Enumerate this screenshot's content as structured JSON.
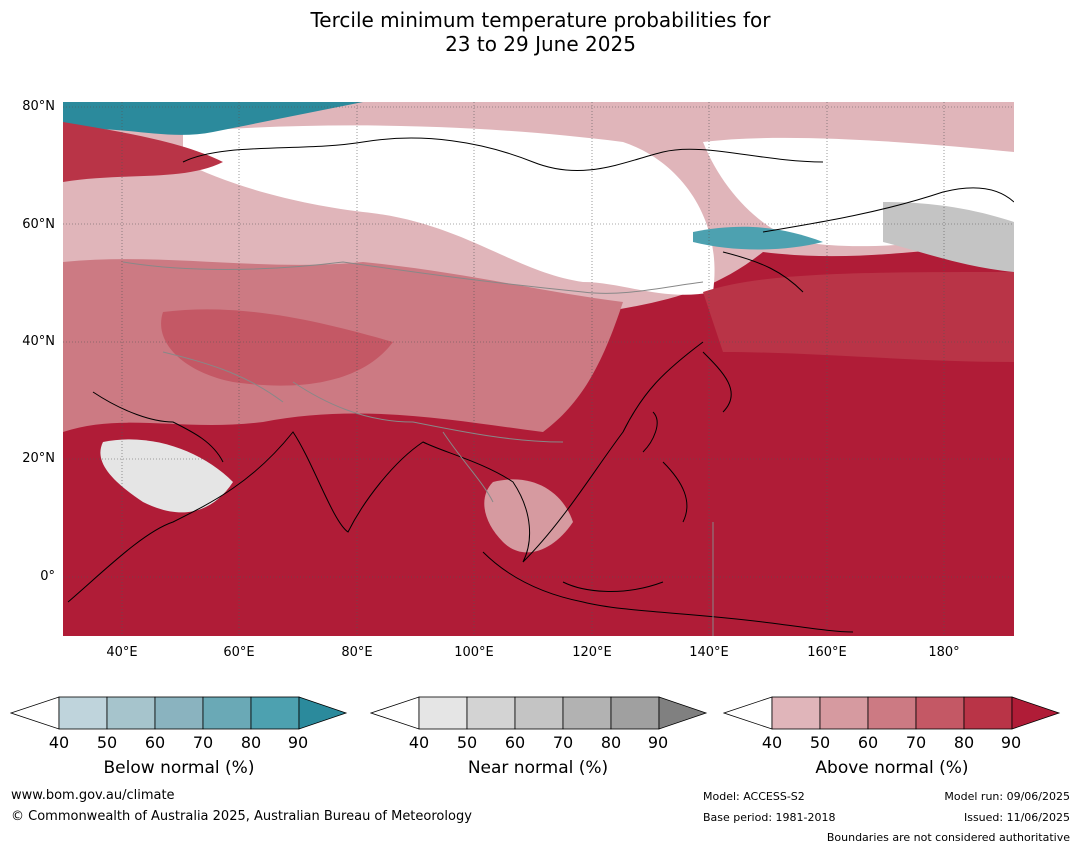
{
  "title_line1": "Tercile minimum temperature probabilities for",
  "title_line2": "23 to 29 June 2025",
  "lat_labels": [
    "80°N",
    "60°N",
    "40°N",
    "20°N",
    "0°"
  ],
  "lon_labels": [
    "40°E",
    "60°E",
    "80°E",
    "100°E",
    "120°E",
    "140°E",
    "160°E",
    "180°"
  ],
  "colorbars": [
    {
      "title": "Below normal (%)",
      "ticks": [
        "40",
        "50",
        "60",
        "70",
        "80",
        "90"
      ],
      "colors": [
        "#ffffff",
        "#bfd4dc",
        "#a6c4cc",
        "#8ab3bf",
        "#6aa9b6",
        "#4da1b0",
        "#2b8a9c"
      ]
    },
    {
      "title": "Near normal (%)",
      "ticks": [
        "40",
        "50",
        "60",
        "70",
        "80",
        "90"
      ],
      "colors": [
        "#ffffff",
        "#e5e5e5",
        "#d3d3d3",
        "#c4c4c4",
        "#b2b2b2",
        "#a0a0a0",
        "#808080"
      ]
    },
    {
      "title": "Above normal (%)",
      "ticks": [
        "40",
        "50",
        "60",
        "70",
        "80",
        "90"
      ],
      "colors": [
        "#ffffff",
        "#e0b5ba",
        "#d69aa0",
        "#cc7a83",
        "#c45865",
        "#b93447",
        "#b01c37"
      ]
    }
  ],
  "footer": {
    "url": "www.bom.gov.au/climate",
    "copyright": "© Commonwealth of Australia 2025, Australian Bureau of Meteorology",
    "model": "Model: ACCESS-S2",
    "base_period": "Base period: 1981-2018",
    "model_run": "Model run: 09/06/2025",
    "issued": "Issued: 11/06/2025",
    "boundaries_note": "Boundaries are not considered authoritative"
  }
}
